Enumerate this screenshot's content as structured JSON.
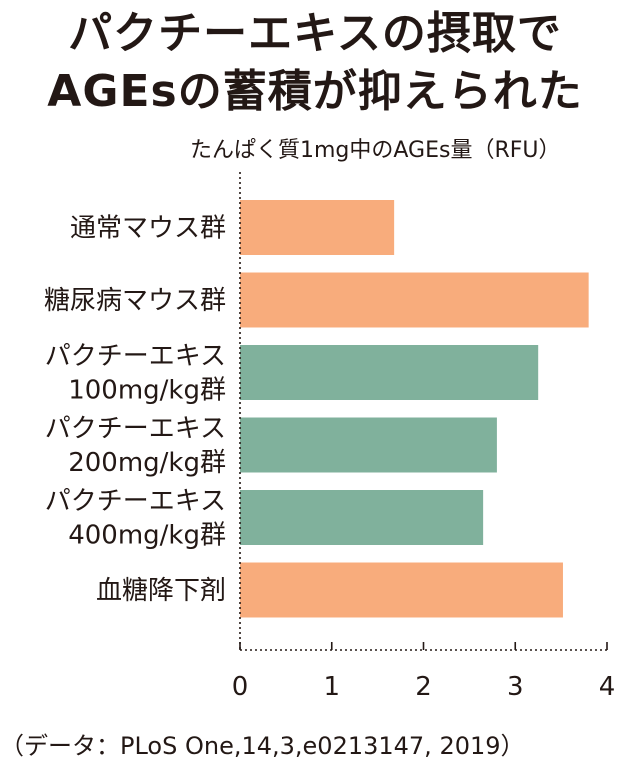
{
  "title_lines": [
    "パクチーエキスの摂取で",
    "AGEsの蓄積が抑えられた"
  ],
  "chart_data": {
    "type": "bar",
    "orientation": "horizontal",
    "ylabel": "たんぱく質1mg中のAGEs量（RFU）",
    "xlim": [
      0,
      4
    ],
    "xticks": [
      0,
      1,
      2,
      3,
      4
    ],
    "categories": [
      "通常マウス群",
      "糖尿病マウス群",
      "パクチーエキス\n100mg/kg群",
      "パクチーエキス\n200mg/kg群",
      "パクチーエキス\n400mg/kg群",
      "血糖降下剤"
    ],
    "values": [
      1.68,
      3.8,
      3.25,
      2.8,
      2.65,
      3.52
    ],
    "bar_colors": [
      "#f8ac7c",
      "#f8ac7c",
      "#80b19c",
      "#80b19c",
      "#80b19c",
      "#f8ac7c"
    ],
    "axis_style": "dotted",
    "grid": false
  },
  "source": "（データ：PLoS One,14,3,e0213147, 2019）"
}
